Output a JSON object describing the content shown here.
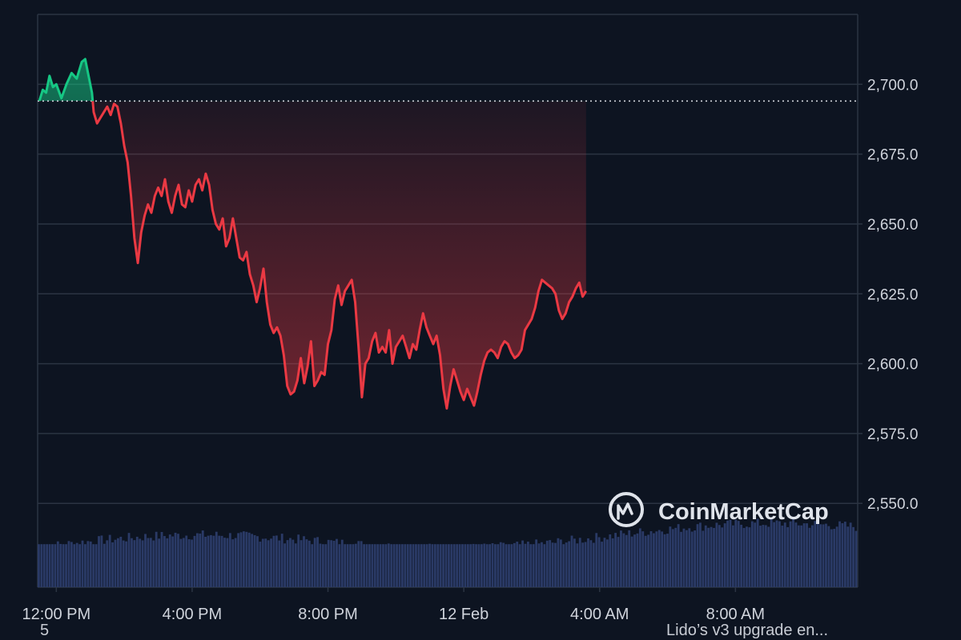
{
  "colors": {
    "background": "#0d1421",
    "grid": "#2b3442",
    "up": "#16c784",
    "down": "#ea3943",
    "volume": "#2a3a66",
    "baseline": "#cfd3da"
  },
  "logo": {
    "icon": "coinmarketcap-logo-icon",
    "text": "CoinMarketCap"
  },
  "footer": {
    "left": "5",
    "right": "Lido’s v3 upgrade en..."
  },
  "chart_data": {
    "type": "line",
    "title": "",
    "xlabel": "",
    "ylabel": "",
    "ylim": [
      2520,
      2725
    ],
    "y_ticks": [
      2550,
      2575,
      2600,
      2625,
      2650,
      2675,
      2700
    ],
    "y_tick_labels": [
      "2,550.0",
      "2,575.0",
      "2,600.0",
      "2,625.0",
      "2,650.0",
      "2,675.0",
      "2,700.0"
    ],
    "x_ticks": [
      0,
      4,
      8,
      12,
      16,
      20
    ],
    "x_tick_labels": [
      "12:00 PM",
      "4:00 PM",
      "8:00 PM",
      "12 Feb",
      "4:00 AM",
      "8:00 AM"
    ],
    "x_range_hours": [
      -0.55,
      23.6
    ],
    "baseline": 2694,
    "grid": true,
    "legend": "none",
    "price": [
      [
        -0.5,
        2694
      ],
      [
        -0.4,
        2698
      ],
      [
        -0.3,
        2697
      ],
      [
        -0.2,
        2703
      ],
      [
        -0.1,
        2699
      ],
      [
        0.0,
        2700
      ],
      [
        0.15,
        2695
      ],
      [
        0.3,
        2700
      ],
      [
        0.45,
        2704
      ],
      [
        0.6,
        2702
      ],
      [
        0.75,
        2708
      ],
      [
        0.85,
        2709
      ],
      [
        0.95,
        2703
      ],
      [
        1.05,
        2697
      ],
      [
        1.1,
        2690
      ],
      [
        1.2,
        2686
      ],
      [
        1.3,
        2688
      ],
      [
        1.4,
        2690
      ],
      [
        1.5,
        2692
      ],
      [
        1.6,
        2689
      ],
      [
        1.7,
        2693
      ],
      [
        1.8,
        2692
      ],
      [
        1.9,
        2686
      ],
      [
        2.0,
        2678
      ],
      [
        2.1,
        2672
      ],
      [
        2.2,
        2660
      ],
      [
        2.3,
        2645
      ],
      [
        2.4,
        2636
      ],
      [
        2.5,
        2647
      ],
      [
        2.6,
        2653
      ],
      [
        2.7,
        2657
      ],
      [
        2.8,
        2654
      ],
      [
        2.9,
        2660
      ],
      [
        3.0,
        2663
      ],
      [
        3.1,
        2660
      ],
      [
        3.2,
        2666
      ],
      [
        3.3,
        2658
      ],
      [
        3.4,
        2654
      ],
      [
        3.5,
        2660
      ],
      [
        3.6,
        2664
      ],
      [
        3.7,
        2657
      ],
      [
        3.8,
        2656
      ],
      [
        3.9,
        2662
      ],
      [
        4.0,
        2658
      ],
      [
        4.1,
        2664
      ],
      [
        4.2,
        2666
      ],
      [
        4.3,
        2662
      ],
      [
        4.4,
        2668
      ],
      [
        4.5,
        2664
      ],
      [
        4.6,
        2655
      ],
      [
        4.7,
        2650
      ],
      [
        4.8,
        2648
      ],
      [
        4.9,
        2652
      ],
      [
        5.0,
        2642
      ],
      [
        5.1,
        2645
      ],
      [
        5.2,
        2652
      ],
      [
        5.3,
        2645
      ],
      [
        5.4,
        2638
      ],
      [
        5.5,
        2637
      ],
      [
        5.6,
        2640
      ],
      [
        5.7,
        2632
      ],
      [
        5.8,
        2628
      ],
      [
        5.9,
        2622
      ],
      [
        6.0,
        2627
      ],
      [
        6.1,
        2634
      ],
      [
        6.2,
        2622
      ],
      [
        6.3,
        2614
      ],
      [
        6.4,
        2611
      ],
      [
        6.5,
        2613
      ],
      [
        6.6,
        2610
      ],
      [
        6.7,
        2603
      ],
      [
        6.8,
        2592
      ],
      [
        6.9,
        2589
      ],
      [
        7.0,
        2590
      ],
      [
        7.1,
        2594
      ],
      [
        7.2,
        2602
      ],
      [
        7.3,
        2593
      ],
      [
        7.4,
        2599
      ],
      [
        7.5,
        2608
      ],
      [
        7.6,
        2592
      ],
      [
        7.7,
        2594
      ],
      [
        7.8,
        2597
      ],
      [
        7.9,
        2596
      ],
      [
        8.0,
        2607
      ],
      [
        8.1,
        2612
      ],
      [
        8.2,
        2623
      ],
      [
        8.3,
        2628
      ],
      [
        8.4,
        2621
      ],
      [
        8.5,
        2626
      ],
      [
        8.6,
        2628
      ],
      [
        8.7,
        2630
      ],
      [
        8.8,
        2622
      ],
      [
        8.9,
        2606
      ],
      [
        9.0,
        2588
      ],
      [
        9.1,
        2600
      ],
      [
        9.2,
        2602
      ],
      [
        9.3,
        2608
      ],
      [
        9.4,
        2611
      ],
      [
        9.5,
        2604
      ],
      [
        9.6,
        2606
      ],
      [
        9.7,
        2604
      ],
      [
        9.8,
        2612
      ],
      [
        9.9,
        2600
      ],
      [
        10.0,
        2606
      ],
      [
        10.1,
        2608
      ],
      [
        10.2,
        2610
      ],
      [
        10.3,
        2606
      ],
      [
        10.4,
        2602
      ],
      [
        10.5,
        2607
      ],
      [
        10.6,
        2605
      ],
      [
        10.7,
        2612
      ],
      [
        10.8,
        2618
      ],
      [
        10.9,
        2613
      ],
      [
        11.0,
        2610
      ],
      [
        11.1,
        2607
      ],
      [
        11.2,
        2610
      ],
      [
        11.3,
        2603
      ],
      [
        11.4,
        2591
      ],
      [
        11.5,
        2584
      ],
      [
        11.6,
        2592
      ],
      [
        11.7,
        2598
      ],
      [
        11.8,
        2594
      ],
      [
        11.9,
        2590
      ],
      [
        12.0,
        2587
      ],
      [
        12.1,
        2591
      ],
      [
        12.2,
        2588
      ],
      [
        12.3,
        2585
      ],
      [
        12.4,
        2590
      ],
      [
        12.5,
        2596
      ],
      [
        12.6,
        2601
      ],
      [
        12.7,
        2604
      ],
      [
        12.8,
        2605
      ],
      [
        12.9,
        2604
      ],
      [
        13.0,
        2602
      ],
      [
        13.1,
        2606
      ],
      [
        13.2,
        2608
      ],
      [
        13.3,
        2607
      ],
      [
        13.4,
        2604
      ],
      [
        13.5,
        2602
      ],
      [
        13.6,
        2603
      ],
      [
        13.7,
        2605
      ],
      [
        13.8,
        2612
      ],
      [
        13.9,
        2614
      ],
      [
        14.0,
        2616
      ],
      [
        14.1,
        2620
      ],
      [
        14.2,
        2626
      ],
      [
        14.3,
        2630
      ],
      [
        14.4,
        2629
      ],
      [
        14.5,
        2628
      ],
      [
        14.6,
        2627
      ],
      [
        14.7,
        2625
      ],
      [
        14.8,
        2619
      ],
      [
        14.9,
        2616
      ],
      [
        15.0,
        2618
      ],
      [
        15.1,
        2622
      ],
      [
        15.2,
        2624
      ],
      [
        15.3,
        2627
      ],
      [
        15.4,
        2629
      ],
      [
        15.5,
        2624
      ],
      [
        15.6,
        2626
      ]
    ],
    "volume_count": 300,
    "volume_band": {
      "min": 2521,
      "max": 2545
    }
  }
}
